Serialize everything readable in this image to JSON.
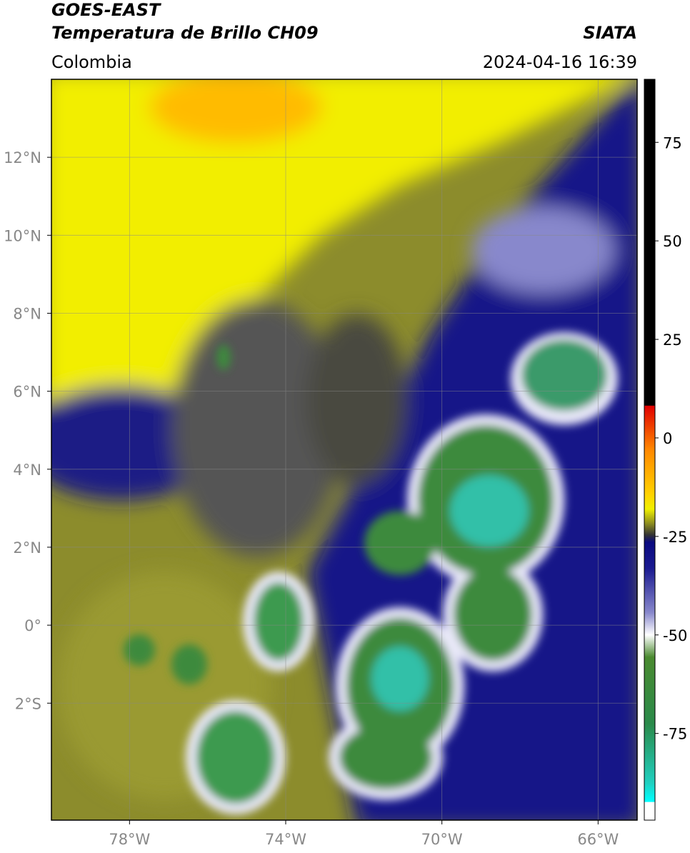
{
  "header": {
    "title": "GOES-EAST",
    "subtitle": "Temperatura de Brillo CH09",
    "source": "SIATA",
    "region": "Colombia",
    "datetime": "2024-04-16 16:39"
  },
  "map": {
    "xlim": [
      -80,
      -65
    ],
    "ylim": [
      -5,
      14
    ],
    "xticks": [
      {
        "value": -78,
        "label": "78°W"
      },
      {
        "value": -74,
        "label": "74°W"
      },
      {
        "value": -70,
        "label": "70°W"
      },
      {
        "value": -66,
        "label": "66°W"
      }
    ],
    "yticks": [
      {
        "value": 12,
        "label": "12°N"
      },
      {
        "value": 10,
        "label": "10°N"
      },
      {
        "value": 8,
        "label": "8°N"
      },
      {
        "value": 6,
        "label": "6°N"
      },
      {
        "value": 4,
        "label": "4°N"
      },
      {
        "value": 2,
        "label": "2°N"
      },
      {
        "value": 0,
        "label": "0°"
      },
      {
        "value": -2,
        "label": "2°S"
      }
    ],
    "grid": true
  },
  "colorbar": {
    "lim": [
      -97,
      91
    ],
    "ticks": [
      75,
      50,
      25,
      0,
      -25,
      -50,
      -75
    ]
  }
}
